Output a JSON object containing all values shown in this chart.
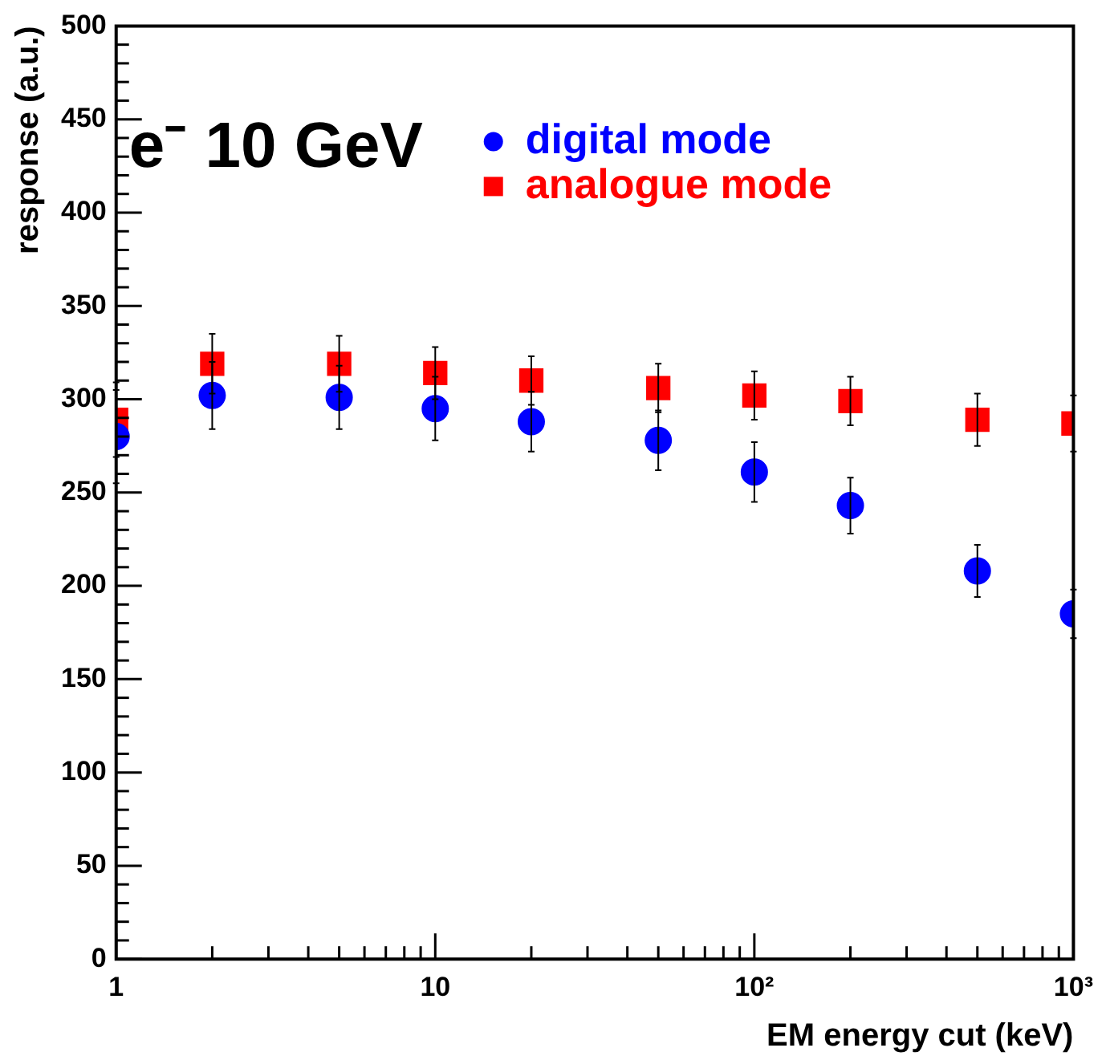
{
  "chart_data": {
    "type": "scatter",
    "title": "e⁻ 10 GeV",
    "xlabel": "EM energy cut (keV)",
    "ylabel": "response (a.u.)",
    "x": [
      1,
      2,
      5,
      10,
      20,
      50,
      100,
      200,
      500,
      1000
    ],
    "series": [
      {
        "name": "digital mode",
        "color": "#0000ff",
        "marker": "circle",
        "values": [
          280,
          302,
          301,
          295,
          288,
          278,
          261,
          243,
          208,
          185
        ],
        "errors": [
          25,
          18,
          17,
          17,
          16,
          16,
          16,
          15,
          14,
          13
        ]
      },
      {
        "name": "analogue mode",
        "color": "#ff0000",
        "marker": "square",
        "values": [
          289,
          319,
          319,
          314,
          310,
          306,
          302,
          299,
          289,
          287
        ],
        "errors": [
          20,
          16,
          15,
          14,
          13,
          13,
          13,
          13,
          14,
          15
        ]
      }
    ],
    "log": "x",
    "xlim": [
      1,
      1000
    ],
    "ylim": [
      0,
      500
    ],
    "xticks": [
      {
        "value": 1,
        "label": "1"
      },
      {
        "value": 2,
        "label": null
      },
      {
        "value": 3,
        "label": null
      },
      {
        "value": 4,
        "label": null
      },
      {
        "value": 5,
        "label": null
      },
      {
        "value": 6,
        "label": null
      },
      {
        "value": 7,
        "label": null
      },
      {
        "value": 8,
        "label": null
      },
      {
        "value": 9,
        "label": null
      },
      {
        "value": 10,
        "label": "10"
      },
      {
        "value": 20,
        "label": null
      },
      {
        "value": 30,
        "label": null
      },
      {
        "value": 40,
        "label": null
      },
      {
        "value": 50,
        "label": null
      },
      {
        "value": 60,
        "label": null
      },
      {
        "value": 70,
        "label": null
      },
      {
        "value": 80,
        "label": null
      },
      {
        "value": 90,
        "label": null
      },
      {
        "value": 100,
        "label": "10²"
      },
      {
        "value": 200,
        "label": null
      },
      {
        "value": 300,
        "label": null
      },
      {
        "value": 400,
        "label": null
      },
      {
        "value": 500,
        "label": null
      },
      {
        "value": 600,
        "label": null
      },
      {
        "value": 700,
        "label": null
      },
      {
        "value": 800,
        "label": null
      },
      {
        "value": 900,
        "label": null
      },
      {
        "value": 1000,
        "label": "10³"
      }
    ],
    "yticks": [
      0,
      50,
      100,
      150,
      200,
      250,
      300,
      350,
      400,
      450,
      500
    ],
    "grid": false,
    "legend": "top right"
  }
}
